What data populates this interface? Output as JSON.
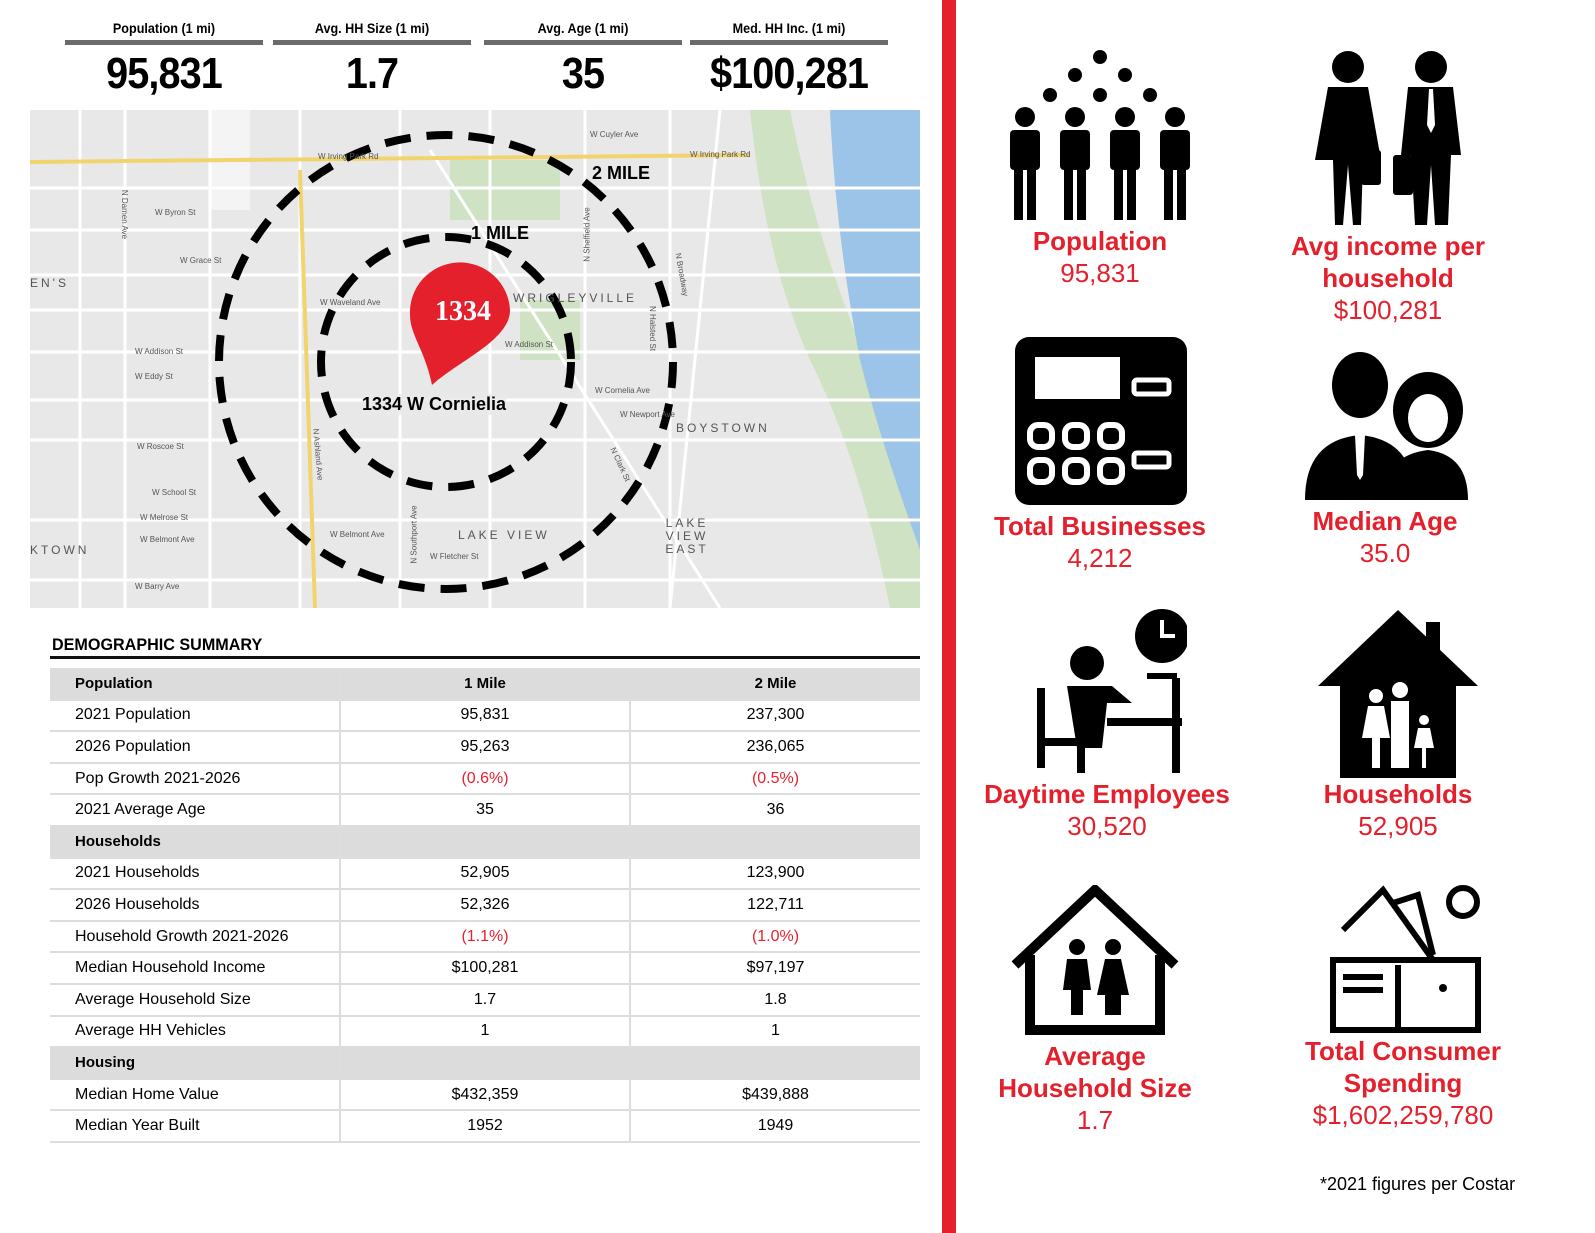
{
  "stats": [
    {
      "label": "Population (1 mi)",
      "value": "95,831"
    },
    {
      "label": "Avg. HH Size (1 mi)",
      "value": "1.7"
    },
    {
      "label": "Avg. Age (1 mi)",
      "value": "35"
    },
    {
      "label": "Med. HH Inc. (1 mi)",
      "value": "$100,281"
    }
  ],
  "map": {
    "pin_label": "1334",
    "address": "1334 W Cornielia",
    "ring1": "1 MILE",
    "ring2": "2 MILE",
    "areas": [
      "WRIGLEYVILLE",
      "BOYSTOWN",
      "LAKE VIEW",
      "LAKE VIEW EAST",
      "EN'S",
      "KTOWN"
    ],
    "streets": [
      "W Irving Park Rd",
      "W Addison St",
      "W Belmont Ave",
      "W Roscoe St",
      "W Grace St",
      "W Byron St",
      "W School St",
      "W Barry Ave",
      "N Clark St",
      "N Broadway",
      "N Ashland Ave",
      "N Southport Ave",
      "N Damen Ave",
      "N Sheffield Ave",
      "W Waveland Ave",
      "W Cornelia Ave",
      "W Newport Ave",
      "W Fletcher St",
      "N Halsted St",
      "W Cuyler Ave",
      "W Melrose St",
      "W Eddy St"
    ]
  },
  "table": {
    "title": "DEMOGRAPHIC SUMMARY",
    "headers": [
      "Population",
      "1 Mile",
      "2 Mile"
    ],
    "rows": [
      {
        "label": "2021 Population",
        "a": "95,831",
        "b": "237,300"
      },
      {
        "label": "2026 Population",
        "a": "95,263",
        "b": "236,065"
      },
      {
        "label": "Pop Growth 2021-2026",
        "a": "(0.6%)",
        "b": "(0.5%)",
        "neg": true
      },
      {
        "label": "2021 Average Age",
        "a": "35",
        "b": "36"
      },
      {
        "section": "Households"
      },
      {
        "label": "2021 Households",
        "a": "52,905",
        "b": "123,900"
      },
      {
        "label": "2026 Households",
        "a": "52,326",
        "b": "122,711"
      },
      {
        "label": "Household Growth 2021-2026",
        "a": "(1.1%)",
        "b": "(1.0%)",
        "neg": true
      },
      {
        "label": "Median Household Income",
        "a": "$100,281",
        "b": "$97,197"
      },
      {
        "label": "Average Household Size",
        "a": "1.7",
        "b": "1.8"
      },
      {
        "label": "Average HH Vehicles",
        "a": "1",
        "b": "1"
      },
      {
        "section": "Housing"
      },
      {
        "label": "Median Home Value",
        "a": "$432,359",
        "b": "$439,888"
      },
      {
        "label": "Median Year Built",
        "a": "1952",
        "b": "1949"
      }
    ]
  },
  "cards": [
    {
      "title": "Population",
      "value": "95,831",
      "icon": "crowd-icon"
    },
    {
      "title": "Avg income per household",
      "value": "$100,281",
      "icon": "business-people-icon"
    },
    {
      "title": "Total Businesses",
      "value": "4,212",
      "icon": "cash-register-icon"
    },
    {
      "title": "Median Age",
      "value": "35.0",
      "icon": "man-woman-icon"
    },
    {
      "title": "Daytime Employees",
      "value": "30,520",
      "icon": "worker-desk-icon"
    },
    {
      "title": "Households",
      "value": "52,905",
      "icon": "family-house-icon"
    },
    {
      "title": "Average Household Size",
      "value": "1.7",
      "icon": "house-kids-icon"
    },
    {
      "title": "Total Consumer Spending",
      "value": "$1,602,259,780",
      "icon": "wallet-icon"
    }
  ],
  "footnote": "*2021 figures per Costar",
  "colors": {
    "accent": "#e3202c",
    "negative": "#e8202f"
  }
}
